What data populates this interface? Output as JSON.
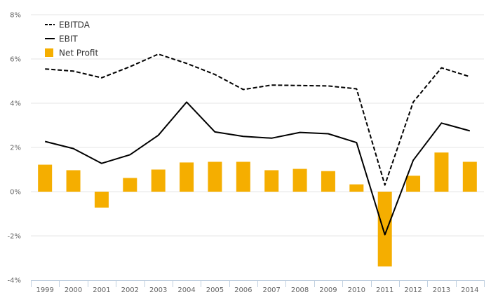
{
  "chart_data": {
    "type": "bar",
    "title": "",
    "xlabel": "",
    "ylabel": "",
    "categories": [
      "1999",
      "2000",
      "2001",
      "2002",
      "2003",
      "2004",
      "2005",
      "2006",
      "2007",
      "2008",
      "2009",
      "2010",
      "2011",
      "2012",
      "2013",
      "2014"
    ],
    "ylim": [
      -4,
      8
    ],
    "y_ticks": [
      -4,
      -2,
      0,
      2,
      4,
      6,
      8
    ],
    "y_tick_labels": [
      "-4%",
      "-2%",
      "0%",
      "2%",
      "4%",
      "6%",
      "8%"
    ],
    "grid": true,
    "legend_position": "top-left",
    "series": [
      {
        "name": "EBITDA",
        "type": "line",
        "style": "dashed",
        "color": "#000000",
        "values": [
          5.55,
          5.45,
          5.15,
          5.65,
          6.22,
          5.8,
          5.3,
          4.62,
          4.82,
          4.8,
          4.78,
          4.65,
          0.3,
          4.05,
          5.6,
          5.2
        ]
      },
      {
        "name": "EBIT",
        "type": "line",
        "style": "solid",
        "color": "#000000",
        "values": [
          2.27,
          1.95,
          1.28,
          1.67,
          2.55,
          4.05,
          2.7,
          2.5,
          2.42,
          2.68,
          2.62,
          2.22,
          -1.95,
          1.42,
          3.1,
          2.75
        ]
      },
      {
        "name": "Net Profit",
        "type": "bar",
        "color": "#f5ae00",
        "values": [
          1.22,
          0.97,
          -0.72,
          0.62,
          1.0,
          1.32,
          1.35,
          1.35,
          0.97,
          1.03,
          0.93,
          0.33,
          -3.38,
          0.72,
          1.77,
          1.35
        ]
      }
    ]
  }
}
